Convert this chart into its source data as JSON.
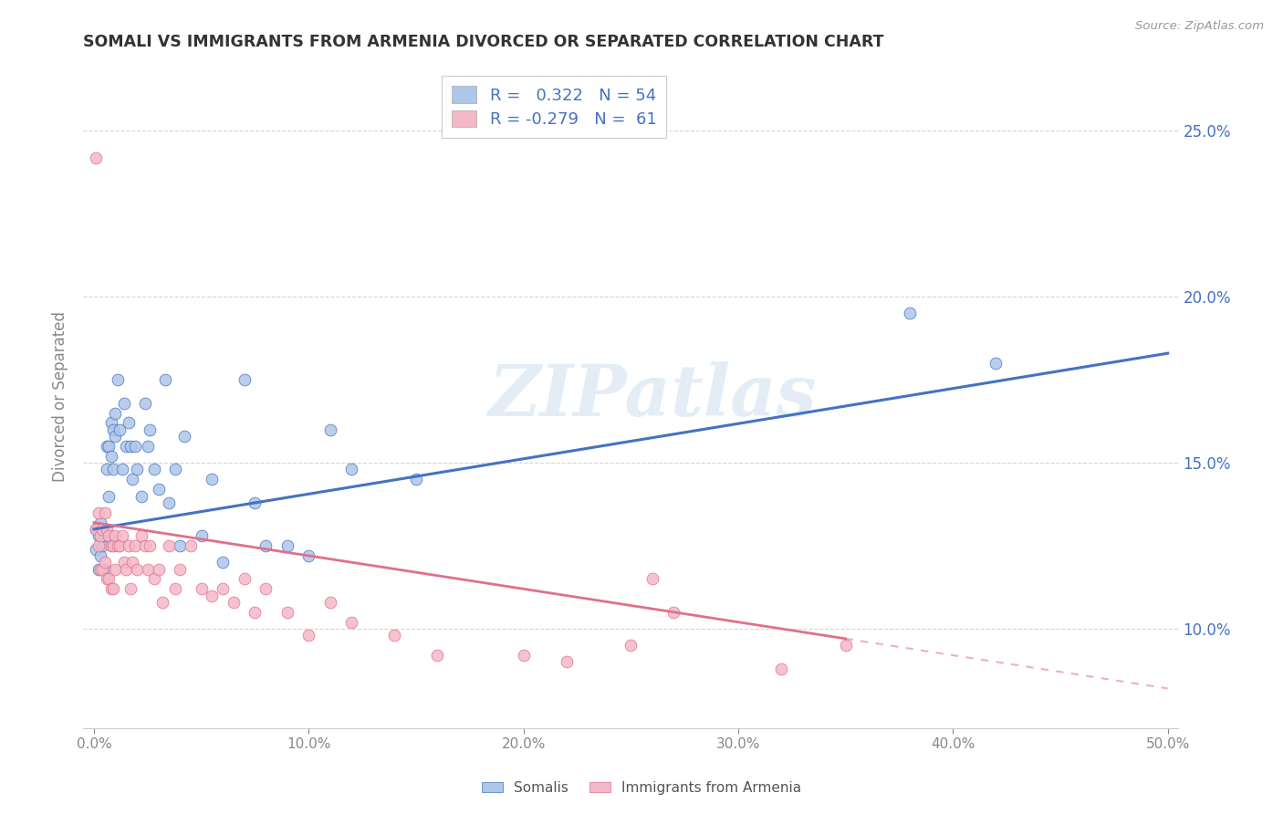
{
  "title": "SOMALI VS IMMIGRANTS FROM ARMENIA DIVORCED OR SEPARATED CORRELATION CHART",
  "source": "Source: ZipAtlas.com",
  "ylabel": "Divorced or Separated",
  "xlabel_ticks": [
    "0.0%",
    "10.0%",
    "20.0%",
    "30.0%",
    "40.0%",
    "50.0%"
  ],
  "xlabel_vals": [
    0.0,
    0.1,
    0.2,
    0.3,
    0.4,
    0.5
  ],
  "ylabel_ticks": [
    "10.0%",
    "15.0%",
    "20.0%",
    "25.0%"
  ],
  "ylabel_vals": [
    0.1,
    0.15,
    0.2,
    0.25
  ],
  "xlim": [
    -0.005,
    0.505
  ],
  "ylim": [
    0.07,
    0.27
  ],
  "somali_R": 0.322,
  "somali_N": 54,
  "armenia_R": -0.279,
  "armenia_N": 61,
  "somali_color": "#aec6e8",
  "armenia_color": "#f4b8c8",
  "somali_line_color": "#4472c4",
  "armenia_line_color": "#e0708a",
  "watermark_text": "ZIPatlas",
  "legend_label_somali": "Somalis",
  "legend_label_armenia": "Immigrants from Armenia",
  "background_color": "#ffffff",
  "grid_color": "#cccccc",
  "title_color": "#333333",
  "right_axis_color": "#4472c4",
  "somali_line_x0": 0.0,
  "somali_line_y0": 0.13,
  "somali_line_x1": 0.5,
  "somali_line_y1": 0.183,
  "armenia_line_solid_x0": 0.0,
  "armenia_line_solid_y0": 0.132,
  "armenia_line_solid_x1": 0.35,
  "armenia_line_solid_y1": 0.097,
  "armenia_line_dash_x0": 0.35,
  "armenia_line_dash_y0": 0.097,
  "armenia_line_dash_x1": 0.5,
  "armenia_line_dash_y1": 0.082,
  "somali_x": [
    0.001,
    0.001,
    0.002,
    0.002,
    0.003,
    0.003,
    0.004,
    0.004,
    0.005,
    0.005,
    0.006,
    0.006,
    0.007,
    0.007,
    0.008,
    0.008,
    0.009,
    0.009,
    0.01,
    0.01,
    0.011,
    0.012,
    0.013,
    0.014,
    0.015,
    0.016,
    0.017,
    0.018,
    0.019,
    0.02,
    0.022,
    0.024,
    0.025,
    0.026,
    0.028,
    0.03,
    0.033,
    0.035,
    0.038,
    0.04,
    0.042,
    0.05,
    0.055,
    0.06,
    0.07,
    0.075,
    0.08,
    0.09,
    0.1,
    0.11,
    0.12,
    0.15,
    0.38,
    0.42
  ],
  "somali_y": [
    0.13,
    0.124,
    0.128,
    0.118,
    0.132,
    0.122,
    0.13,
    0.125,
    0.128,
    0.118,
    0.155,
    0.148,
    0.155,
    0.14,
    0.162,
    0.152,
    0.16,
    0.148,
    0.165,
    0.158,
    0.175,
    0.16,
    0.148,
    0.168,
    0.155,
    0.162,
    0.155,
    0.145,
    0.155,
    0.148,
    0.14,
    0.168,
    0.155,
    0.16,
    0.148,
    0.142,
    0.175,
    0.138,
    0.148,
    0.125,
    0.158,
    0.128,
    0.145,
    0.12,
    0.175,
    0.138,
    0.125,
    0.125,
    0.122,
    0.16,
    0.148,
    0.145,
    0.195,
    0.18
  ],
  "armenia_x": [
    0.001,
    0.001,
    0.002,
    0.002,
    0.003,
    0.003,
    0.004,
    0.004,
    0.005,
    0.005,
    0.006,
    0.006,
    0.007,
    0.007,
    0.008,
    0.008,
    0.009,
    0.009,
    0.01,
    0.01,
    0.011,
    0.012,
    0.013,
    0.014,
    0.015,
    0.016,
    0.017,
    0.018,
    0.019,
    0.02,
    0.022,
    0.024,
    0.025,
    0.026,
    0.028,
    0.03,
    0.032,
    0.035,
    0.038,
    0.04,
    0.045,
    0.05,
    0.055,
    0.06,
    0.065,
    0.07,
    0.075,
    0.08,
    0.09,
    0.1,
    0.11,
    0.12,
    0.14,
    0.16,
    0.2,
    0.22,
    0.25,
    0.26,
    0.27,
    0.32,
    0.35
  ],
  "armenia_y": [
    0.242,
    0.13,
    0.135,
    0.125,
    0.128,
    0.118,
    0.13,
    0.118,
    0.135,
    0.12,
    0.13,
    0.115,
    0.128,
    0.115,
    0.125,
    0.112,
    0.125,
    0.112,
    0.128,
    0.118,
    0.125,
    0.125,
    0.128,
    0.12,
    0.118,
    0.125,
    0.112,
    0.12,
    0.125,
    0.118,
    0.128,
    0.125,
    0.118,
    0.125,
    0.115,
    0.118,
    0.108,
    0.125,
    0.112,
    0.118,
    0.125,
    0.112,
    0.11,
    0.112,
    0.108,
    0.115,
    0.105,
    0.112,
    0.105,
    0.098,
    0.108,
    0.102,
    0.098,
    0.092,
    0.092,
    0.09,
    0.095,
    0.115,
    0.105,
    0.088,
    0.095
  ]
}
